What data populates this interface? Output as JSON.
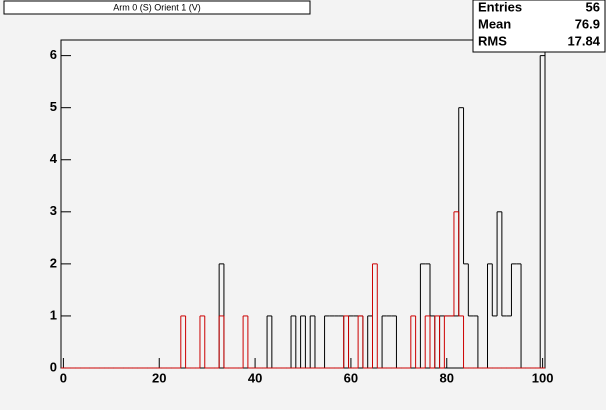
{
  "title": "Arm 0 (S) Orient 1 (V)",
  "stats_box": {
    "rows": [
      {
        "label": "Entries",
        "value": 56
      },
      {
        "label": "Mean",
        "value": 76.9
      },
      {
        "label": "RMS",
        "value": 17.84
      }
    ]
  },
  "chart_data": {
    "type": "histogram",
    "bins": [
      -0.5,
      0.5,
      1.5,
      2.5,
      3.5,
      4.5,
      5.5,
      6.5,
      7.5,
      8.5,
      9.5,
      10.5,
      11.5,
      12.5,
      13.5,
      14.5,
      15.5,
      16.5,
      17.5,
      18.5,
      19.5,
      20.5,
      21.5,
      22.5,
      23.5,
      24.5,
      25.5,
      26.5,
      27.5,
      28.5,
      29.5,
      30.5,
      31.5,
      32.5,
      33.5,
      34.5,
      35.5,
      36.5,
      37.5,
      38.5,
      39.5,
      40.5,
      41.5,
      42.5,
      43.5,
      44.5,
      45.5,
      46.5,
      47.5,
      48.5,
      49.5,
      50.5,
      51.5,
      52.5,
      53.5,
      54.5,
      55.5,
      56.5,
      57.5,
      58.5,
      59.5,
      60.5,
      61.5,
      62.5,
      63.5,
      64.5,
      65.5,
      66.5,
      67.5,
      68.5,
      69.5,
      70.5,
      71.5,
      72.5,
      73.5,
      74.5,
      75.5,
      76.5,
      77.5,
      78.5,
      79.5,
      80.5,
      81.5,
      82.5,
      83.5,
      84.5,
      85.5,
      86.5,
      87.5,
      88.5,
      89.5,
      90.5,
      91.5,
      92.5,
      93.5,
      94.5,
      95.5,
      96.5,
      97.5,
      98.5,
      99.5,
      100.5
    ],
    "series": [
      {
        "color": "#000000",
        "values": [
          0,
          0,
          0,
          0,
          0,
          0,
          0,
          0,
          0,
          0,
          0,
          0,
          0,
          0,
          0,
          0,
          0,
          0,
          0,
          0,
          0,
          0,
          0,
          0,
          0,
          0,
          0,
          0,
          0,
          0,
          0,
          0,
          0,
          2,
          0,
          0,
          0,
          0,
          0,
          0,
          0,
          0,
          0,
          1,
          0,
          0,
          0,
          0,
          1,
          0,
          1,
          0,
          1,
          0,
          0,
          1,
          1,
          1,
          1,
          0,
          1,
          1,
          1,
          0,
          1,
          0,
          0,
          1,
          1,
          1,
          0,
          0,
          0,
          0,
          0,
          2,
          2,
          1,
          0,
          1,
          1,
          1,
          1,
          5,
          2,
          1,
          1,
          0,
          0,
          2,
          1,
          3,
          1,
          1,
          2,
          2,
          0,
          0,
          0,
          0,
          6
        ]
      },
      {
        "color": "#cc0000",
        "values": [
          0,
          0,
          0,
          0,
          0,
          0,
          0,
          0,
          0,
          0,
          0,
          0,
          0,
          0,
          0,
          0,
          0,
          0,
          0,
          0,
          0,
          0,
          0,
          0,
          0,
          1,
          0,
          0,
          0,
          1,
          0,
          0,
          0,
          1,
          0,
          0,
          0,
          0,
          1,
          0,
          0,
          0,
          0,
          0,
          0,
          0,
          0,
          0,
          0,
          0,
          0,
          0,
          0,
          0,
          0,
          0,
          0,
          0,
          0,
          1,
          0,
          0,
          1,
          0,
          0,
          2,
          0,
          0,
          0,
          0,
          0,
          0,
          0,
          1,
          0,
          0,
          1,
          0,
          1,
          0,
          1,
          1,
          3,
          1,
          0,
          0,
          0,
          0,
          0,
          0,
          0,
          0,
          0,
          0,
          0,
          0,
          0,
          0,
          0,
          0,
          0
        ]
      }
    ],
    "xlim": [
      -0.5,
      100.5
    ],
    "xticks": [
      0,
      20,
      40,
      60,
      80,
      100
    ],
    "ylim": [
      0,
      6.3
    ],
    "yticks": [
      0,
      1,
      2,
      3,
      4,
      5,
      6
    ]
  }
}
